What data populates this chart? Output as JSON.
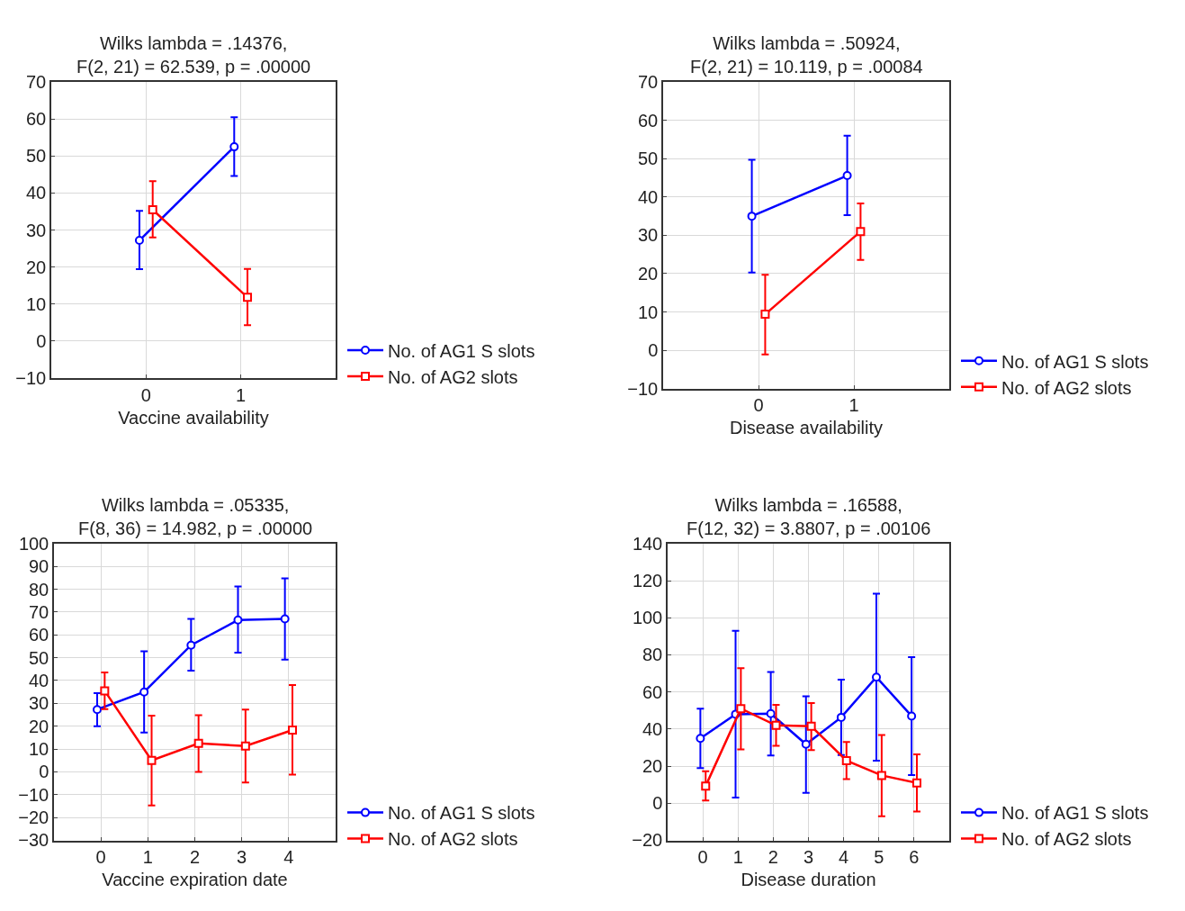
{
  "chart_data": [
    {
      "type": "line",
      "title": "Wilks lambda = .14376,\nF(2, 21) = 62.539, p = .00000",
      "xlabel": "Vaccine availability",
      "xlim": [
        -1,
        2
      ],
      "xticks": [
        0,
        1
      ],
      "ylim": [
        -10,
        70
      ],
      "yticks": [
        -10,
        0,
        10,
        20,
        30,
        40,
        50,
        60,
        70
      ],
      "grid": true,
      "legend": "bottom right",
      "series": [
        {
          "name": "No. of AG1 S slots",
          "color": "#0000ff",
          "marker": "circle",
          "x": [
            -0.07,
            0.93
          ],
          "values": [
            27.2,
            52.5
          ],
          "errors": [
            [
              19.4,
              35.2
            ],
            [
              44.6,
              60.5
            ]
          ]
        },
        {
          "name": "No. of AG2 slots",
          "color": "#ff0000",
          "marker": "square",
          "x": [
            0.07,
            1.07
          ],
          "values": [
            35.5,
            11.8
          ],
          "errors": [
            [
              28,
              43.2
            ],
            [
              4.3,
              19.5
            ]
          ]
        }
      ]
    },
    {
      "type": "line",
      "title": "Wilks lambda = .50924,\nF(2, 21) = 10.119, p = .00084",
      "xlabel": "Disease availability",
      "xlim": [
        -1,
        2
      ],
      "xticks": [
        0,
        1
      ],
      "ylim": [
        -10,
        70
      ],
      "yticks": [
        -10,
        0,
        10,
        20,
        30,
        40,
        50,
        60,
        70
      ],
      "grid": true,
      "legend": "bottom right",
      "series": [
        {
          "name": "No. of AG1 S slots",
          "color": "#0000ff",
          "marker": "circle",
          "x": [
            -0.07,
            0.93
          ],
          "values": [
            35,
            45.6
          ],
          "errors": [
            [
              20.3,
              49.7
            ],
            [
              35.3,
              56
            ]
          ]
        },
        {
          "name": "No. of AG2 slots",
          "color": "#ff0000",
          "marker": "square",
          "x": [
            0.07,
            1.07
          ],
          "values": [
            9.4,
            31
          ],
          "errors": [
            [
              -1.1,
              19.7
            ],
            [
              23.6,
              38.3
            ]
          ]
        }
      ]
    },
    {
      "type": "line",
      "title": "Wilks lambda = .05335,\nF(8, 36) = 14.982, p = .00000",
      "xlabel": "Vaccine expiration date",
      "xlim": [
        -1,
        5
      ],
      "xticks": [
        0,
        1,
        2,
        3,
        4
      ],
      "ylim": [
        -30,
        100
      ],
      "yticks": [
        -30,
        -20,
        -10,
        0,
        10,
        20,
        30,
        40,
        50,
        60,
        70,
        80,
        90,
        100
      ],
      "grid": true,
      "legend": "bottom right",
      "series": [
        {
          "name": "No. of AG1 S slots",
          "color": "#0000ff",
          "marker": "circle",
          "x": [
            -0.08,
            0.92,
            1.92,
            2.92,
            3.92
          ],
          "values": [
            27.3,
            35,
            55.5,
            66.5,
            67
          ],
          "errors": [
            [
              20,
              34.5
            ],
            [
              17.2,
              52.8
            ],
            [
              44.3,
              67
            ],
            [
              52.2,
              81.2
            ],
            [
              49.2,
              84.8
            ]
          ]
        },
        {
          "name": "No. of AG2 slots",
          "color": "#ff0000",
          "marker": "square",
          "x": [
            0.08,
            1.08,
            2.08,
            3.08,
            4.08
          ],
          "values": [
            35.5,
            5,
            12.5,
            11.3,
            18.3
          ],
          "errors": [
            [
              27.5,
              43.5
            ],
            [
              -14.7,
              24.6
            ],
            [
              0,
              24.8
            ],
            [
              -4.7,
              27.3
            ],
            [
              -1.2,
              38
            ]
          ]
        }
      ]
    },
    {
      "type": "line",
      "title": "Wilks lambda = .16588,\nF(12, 32) = 3.8807, p = .00106",
      "xlabel": "Disease duration",
      "xlim": [
        -1,
        7
      ],
      "xticks": [
        0,
        1,
        2,
        3,
        4,
        5,
        6
      ],
      "ylim": [
        -20,
        140
      ],
      "yticks": [
        -20,
        0,
        20,
        40,
        60,
        80,
        100,
        120,
        140
      ],
      "grid": true,
      "legend": "bottom right",
      "series": [
        {
          "name": "No. of AG1 S slots",
          "color": "#0000ff",
          "marker": "circle",
          "x": [
            -0.07,
            0.93,
            1.93,
            2.93,
            3.93,
            4.93,
            5.93
          ],
          "values": [
            35,
            48,
            48.3,
            31.8,
            46.3,
            68,
            47
          ],
          "errors": [
            [
              19,
              51
            ],
            [
              3,
              93
            ],
            [
              25.7,
              70.7
            ],
            [
              5.6,
              57.6
            ],
            [
              26,
              66.6
            ],
            [
              23,
              113
            ],
            [
              15.2,
              78.8
            ]
          ]
        },
        {
          "name": "No. of AG2 slots",
          "color": "#ff0000",
          "marker": "square",
          "x": [
            0.08,
            1.08,
            2.08,
            3.08,
            4.08,
            5.08,
            6.08
          ],
          "values": [
            9.3,
            51,
            42,
            41.5,
            23,
            15,
            11
          ],
          "errors": [
            [
              1.5,
              17.2
            ],
            [
              29,
              72.8
            ],
            [
              31,
              53
            ],
            [
              28.6,
              54
            ],
            [
              13,
              33
            ],
            [
              -7,
              36.8
            ],
            [
              -4.5,
              26.4
            ]
          ]
        }
      ]
    }
  ]
}
